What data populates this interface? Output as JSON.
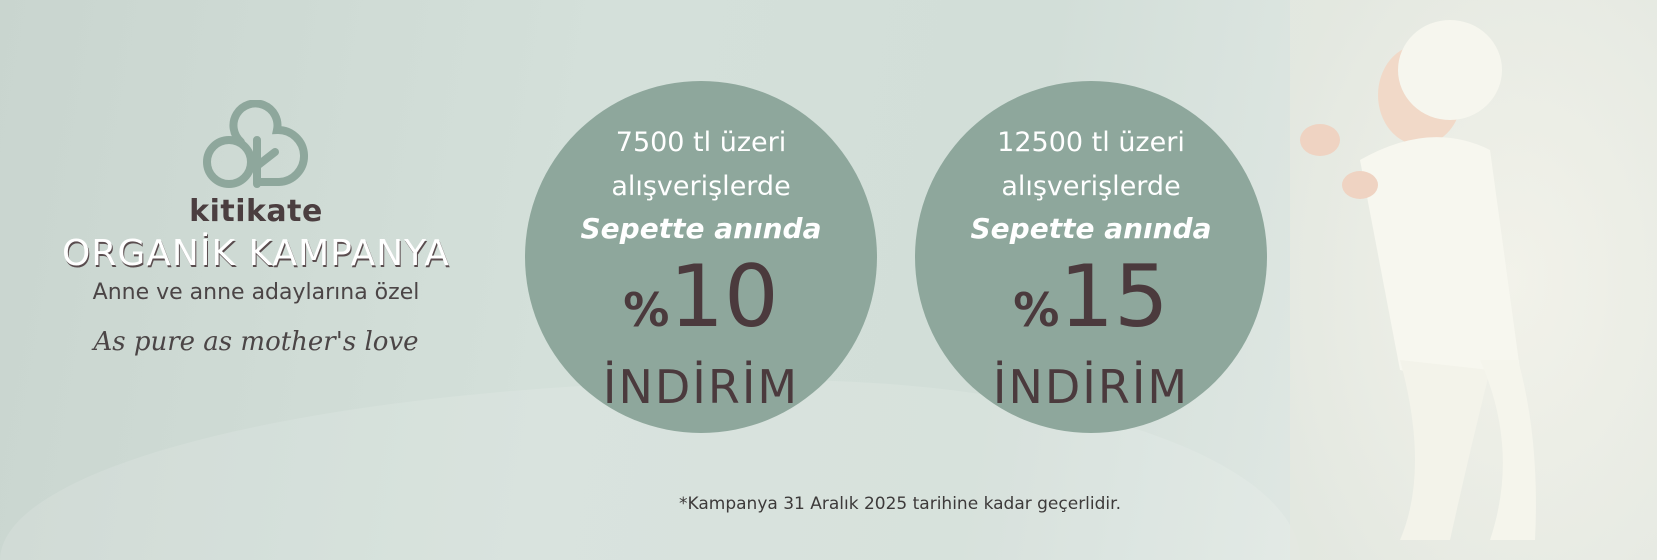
{
  "brand": {
    "logo_text": "kitikate",
    "headline": "ORGANİK KAMPANYA",
    "subline": "Anne ve anne adaylarına özel",
    "tagline": "As pure as mother's love"
  },
  "offers": [
    {
      "line1": "7500 tl üzeri",
      "line2": "alışverişlerde",
      "line3": "Sepette anında",
      "percent_symbol": "%",
      "percent": "10",
      "label": "İNDİRİM"
    },
    {
      "line1": "12500 tl üzeri",
      "line2": "alışverişlerde",
      "line3": "Sepette anında",
      "percent_symbol": "%",
      "percent": "15",
      "label": "İNDİRİM"
    }
  ],
  "footnote": "*Kampanya 31 Aralık 2025 tarihine kadar geçerlidir.",
  "colors": {
    "background": "#d0dcd6",
    "circle": "#8ea79c",
    "dark_text": "#4b3a3d",
    "logo": "#8ea79c"
  }
}
